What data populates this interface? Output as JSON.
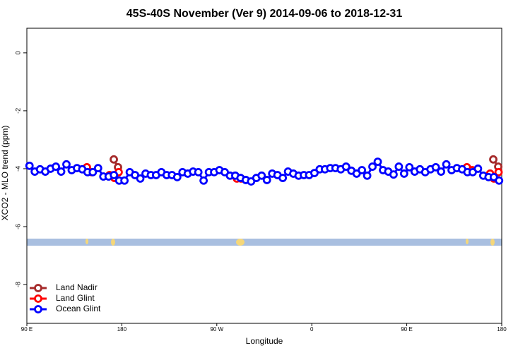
{
  "chart_data": {
    "type": "line",
    "title": "45S-40S November (Ver 9)   2014-09-06 to 2018-12-31",
    "x_label": "Longitude",
    "y_label": "XCO2 - MLO trend (ppm)",
    "xlim": [
      90,
      540
    ],
    "ylim": [
      -9.34,
      0.85
    ],
    "xticks": [
      {
        "value": 90,
        "label": "90 E"
      },
      {
        "value": 180,
        "label": "180"
      },
      {
        "value": 270,
        "label": "90 W"
      },
      {
        "value": 360,
        "label": "0"
      },
      {
        "value": 450,
        "label": "90 E"
      },
      {
        "value": 540,
        "label": "180"
      }
    ],
    "yticks": [
      0,
      -2,
      -4,
      -6,
      -8
    ],
    "grid": false,
    "legend_position": "bottom-left",
    "series": [
      {
        "name": "Land Nadir",
        "color": "#a52a2a",
        "x": [
          172.4,
          176.4,
          null,
          532.0,
          536.7
        ],
        "values": [
          -3.68,
          -3.95,
          null,
          -3.68,
          -3.93
        ]
      },
      {
        "name": "Land Glint",
        "color": "#ff0000",
        "x": [
          146.9,
          151.6,
          null,
          168.4,
          173.0,
          177.0,
          null,
          289.0,
          293.0,
          null,
          507.0,
          512.0,
          null,
          529.0,
          532.6,
          537.0
        ],
        "values": [
          -3.95,
          -4.12,
          null,
          -4.22,
          -4.32,
          -4.12,
          null,
          -4.34,
          -4.34,
          null,
          -3.95,
          -4.05,
          null,
          -4.17,
          -4.34,
          -4.12
        ]
      },
      {
        "name": "Ocean Glint",
        "color": "#0000ff",
        "x": [
          92.5,
          97.5,
          102.5,
          107.5,
          112.5,
          117.5,
          122.5,
          127.5,
          132.5,
          137.5,
          142.5,
          147.5,
          152.5,
          157.5,
          162.5,
          167.5,
          172.5,
          177.5,
          182.5,
          187.5,
          192.5,
          197.5,
          202.5,
          207.5,
          212.5,
          217.5,
          222.5,
          227.5,
          232.5,
          237.5,
          242.5,
          247.5,
          252.5,
          257.5,
          262.5,
          267.5,
          272.5,
          277.5,
          282.5,
          287.5,
          292.5,
          297.5,
          302.5,
          307.5,
          312.5,
          317.5,
          322.5,
          327.5,
          332.5,
          337.5,
          342.5,
          347.5,
          352.5,
          357.5,
          362.5,
          367.5,
          372.5,
          377.5,
          382.5,
          387.5,
          392.5,
          397.5,
          402.5,
          407.5,
          412.5,
          417.5,
          422.5,
          427.5,
          432.5,
          437.5,
          442.5,
          447.5,
          452.5,
          457.5,
          462.5,
          467.5,
          472.5,
          477.5,
          482.5,
          487.5,
          492.5,
          497.5,
          502.5,
          507.5,
          512.5,
          517.5,
          522.5,
          527.5,
          532.5,
          537.5
        ],
        "values": [
          -3.9,
          -4.1,
          -4.02,
          -4.1,
          -4.0,
          -3.93,
          -4.1,
          -3.85,
          -4.05,
          -3.98,
          -4.02,
          -4.12,
          -4.12,
          -3.98,
          -4.27,
          -4.27,
          -4.22,
          -4.41,
          -4.41,
          -4.12,
          -4.22,
          -4.34,
          -4.17,
          -4.22,
          -4.22,
          -4.12,
          -4.22,
          -4.22,
          -4.29,
          -4.12,
          -4.17,
          -4.1,
          -4.12,
          -4.41,
          -4.12,
          -4.12,
          -4.05,
          -4.12,
          -4.24,
          -4.24,
          -4.32,
          -4.39,
          -4.44,
          -4.32,
          -4.24,
          -4.39,
          -4.17,
          -4.22,
          -4.32,
          -4.1,
          -4.17,
          -4.24,
          -4.22,
          -4.22,
          -4.15,
          -4.02,
          -4.02,
          -3.98,
          -3.98,
          -4.02,
          -3.93,
          -4.07,
          -4.17,
          -4.05,
          -4.24,
          -3.93,
          -3.76,
          -4.05,
          -4.1,
          -4.2,
          -3.93,
          -4.17,
          -3.95,
          -4.1,
          -4.02,
          -4.12,
          -4.02,
          -3.95,
          -4.1,
          -3.85,
          -4.05,
          -3.98,
          -4.02,
          -4.12,
          -4.12,
          -4.0,
          -4.24,
          -4.29,
          -4.29,
          -4.41
        ]
      }
    ]
  }
}
